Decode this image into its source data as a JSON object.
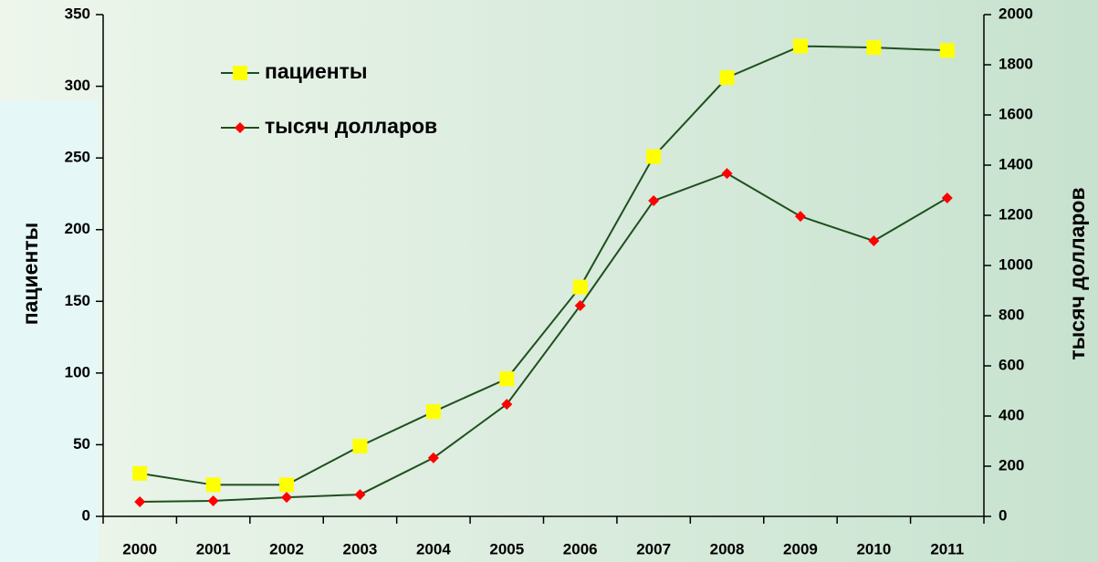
{
  "chart_data": {
    "type": "line",
    "categories": [
      "2000",
      "2001",
      "2002",
      "2003",
      "2004",
      "2005",
      "2006",
      "2007",
      "2008",
      "2009",
      "2010",
      "2011"
    ],
    "series": [
      {
        "name": "пациенты",
        "color": "#ffff00",
        "marker": "square",
        "values": [
          30,
          22,
          22,
          49,
          73,
          96,
          160,
          251,
          306,
          328,
          327,
          325
        ]
      },
      {
        "name": "тысяч долларов",
        "color": "#ff0000",
        "marker": "diamond",
        "axis": "y2",
        "values": [
          58,
          62,
          76,
          87,
          233,
          447,
          840,
          1258,
          1367,
          1196,
          1098,
          1269
        ]
      }
    ],
    "line_color": "#1f4f1f",
    "ylabel": "пациенты",
    "y2label": "тысяч долларов",
    "ylim": [
      0,
      350
    ],
    "yticks": [
      0,
      50,
      100,
      150,
      200,
      250,
      300,
      350
    ],
    "y2lim": [
      0,
      2000
    ],
    "y2ticks": [
      0,
      200,
      400,
      600,
      800,
      1000,
      1200,
      1400,
      1600,
      1800,
      2000
    ],
    "grid": false,
    "legend": "upper left"
  }
}
